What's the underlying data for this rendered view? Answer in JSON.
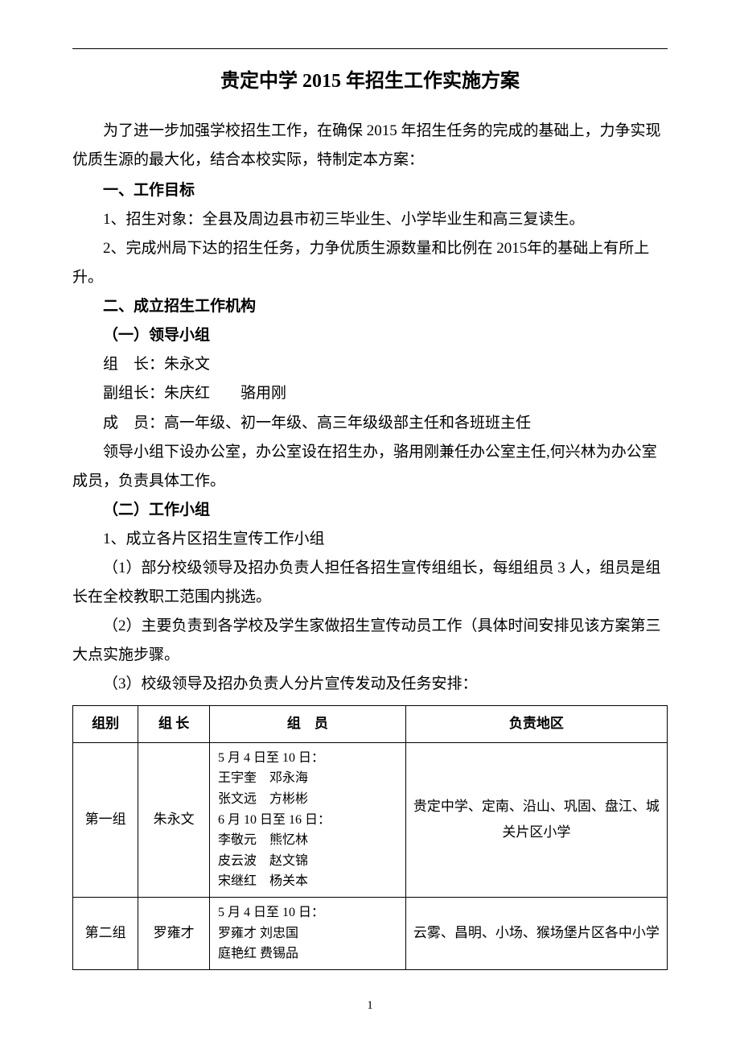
{
  "title": "贵定中学 2015 年招生工作实施方案",
  "intro": "为了进一步加强学校招生工作，在确保 2015 年招生任务的完成的基础上，力争实现优质生源的最大化，结合本校实际，特制定本方案：",
  "section1": {
    "heading": "一、工作目标",
    "item1": "1、招生对象：全县及周边县市初三毕业生、小学毕业生和高三复读生。",
    "item2": "2、完成州局下达的招生任务，力争优质生源数量和比例在 2015年的基础上有所上升。"
  },
  "section2": {
    "heading": "二、成立招生工作机构",
    "sub1_heading": "（一）领导小组",
    "leader_line": "组　长：朱永文",
    "vice_line": "副组长：朱庆红　　骆用刚",
    "member_line": "成　员：高一年级、初一年级、高三年级级部主任和各班班主任",
    "office_line": "领导小组下设办公室，办公室设在招生办，骆用刚兼任办公室主任,何兴林为办公室成员，负责具体工作。",
    "sub2_heading": "（二）工作小组",
    "sub2_item1": "1、成立各片区招生宣传工作小组",
    "sub2_p1": "（1）部分校级领导及招办负责人担任各招生宣传组组长，每组组员 3 人，组员是组长在全校教职工范围内挑选。",
    "sub2_p2": "（2）主要负责到各学校及学生家做招生宣传动员工作（具体时间安排见该方案第三大点实施步骤。",
    "sub2_p3": "（3）校级领导及招办负责人分片宣传发动及任务安排："
  },
  "table": {
    "headers": {
      "group": "组别",
      "leader": "组 长",
      "members": "组　员",
      "area": "负责地区"
    },
    "rows": [
      {
        "group": "第一组",
        "leader": "朱永文",
        "members": "5 月 4 日至 10 日：\n王宇奎　邓永海\n张文远　方彬彬\n6 月 10 日至 16 日：\n李敬元　熊忆林\n皮云波　赵文锦\n宋继红　杨关本",
        "area": "贵定中学、定南、沿山、巩固、盘江、城关片区小学"
      },
      {
        "group": "第二组",
        "leader": "罗雍才",
        "members": "5 月 4 日至 10 日：\n罗雍才  刘忠国\n庭艳红  费锡品",
        "area": "云雾、昌明、小场、猴场堡片区各中小学"
      }
    ]
  },
  "page_number": "1"
}
